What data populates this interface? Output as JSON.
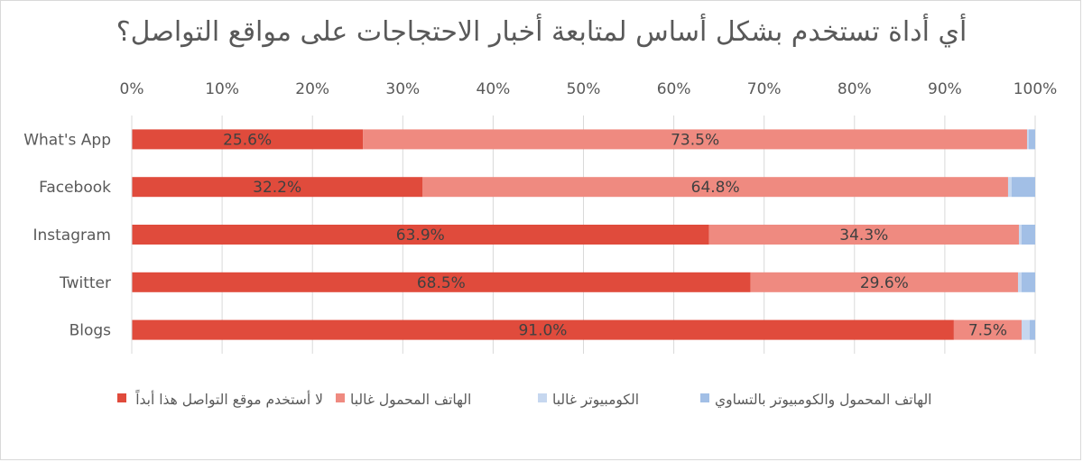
{
  "chart_data": {
    "type": "bar",
    "orientation": "horizontal",
    "stacked": "percent",
    "title": "أي أداة تستخدم بشكل أساس لمتابعة أخبار الاحتجاجات على مواقع التواصل؟",
    "categories": [
      "What's App",
      "Facebook",
      "Instagram",
      "Twitter",
      "Blogs"
    ],
    "xlim": [
      0,
      100
    ],
    "xticks": [
      "0%",
      "10%",
      "20%",
      "30%",
      "40%",
      "50%",
      "60%",
      "70%",
      "80%",
      "90%",
      "100%"
    ],
    "grid": true,
    "legend_position": "bottom",
    "series": [
      {
        "name": "لا أستخدم موقع التواصل هذا أبداً",
        "color": "#e04b3c",
        "values": [
          25.6,
          32.2,
          63.9,
          68.5,
          91.0
        ],
        "labels": [
          "25.6%",
          "32.2%",
          "63.9%",
          "68.5%",
          "91.0%"
        ]
      },
      {
        "name": "الهاتف المحمول غالبا",
        "color": "#ef8a80",
        "values": [
          73.5,
          64.8,
          34.3,
          29.6,
          7.5
        ],
        "labels": [
          "73.5%",
          "64.8%",
          "34.3%",
          "29.6%",
          "7.5%"
        ]
      },
      {
        "name": "الكومبيوتر غالبا",
        "color": "#c6d7ef",
        "values": [
          0.2,
          0.4,
          0.3,
          0.4,
          0.9
        ]
      },
      {
        "name": "الهاتف المحمول والكومبيوتر بالتساوي",
        "color": "#a2bfe6",
        "values": [
          0.7,
          2.6,
          1.5,
          1.5,
          0.6
        ]
      }
    ]
  }
}
